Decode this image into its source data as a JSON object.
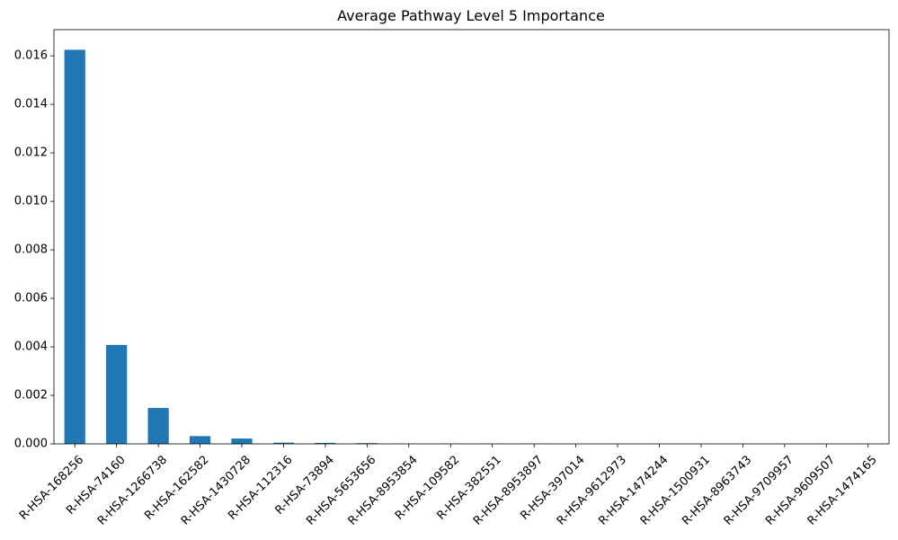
{
  "chart_data": {
    "type": "bar",
    "title": "Average Pathway Level 5 Importance",
    "xlabel": "",
    "ylabel": "",
    "ylim": [
      0,
      0.01708
    ],
    "yticks": [
      0.0,
      0.002,
      0.004,
      0.006,
      0.008,
      0.01,
      0.012,
      0.014,
      0.016
    ],
    "ytick_labels": [
      "0.000",
      "0.002",
      "0.004",
      "0.006",
      "0.008",
      "0.010",
      "0.012",
      "0.014",
      "0.016"
    ],
    "grid": false,
    "bar_color": "#1f77b4",
    "categories": [
      "R-HSA-168256",
      "R-HSA-74160",
      "R-HSA-1266738",
      "R-HSA-162582",
      "R-HSA-1430728",
      "R-HSA-112316",
      "R-HSA-73894",
      "R-HSA-5653656",
      "R-HSA-8953854",
      "R-HSA-109582",
      "R-HSA-382551",
      "R-HSA-8953897",
      "R-HSA-397014",
      "R-HSA-9612973",
      "R-HSA-1474244",
      "R-HSA-1500931",
      "R-HSA-8963743",
      "R-HSA-9709957",
      "R-HSA-9609507",
      "R-HSA-1474165"
    ],
    "values": [
      0.01625,
      0.00408,
      0.00148,
      0.00032,
      0.00022,
      5e-05,
      4e-05,
      3e-05,
      5e-06,
      4e-06,
      3e-06,
      3e-06,
      2e-06,
      2e-06,
      2e-06,
      1e-06,
      1e-06,
      1e-06,
      1e-06,
      1e-06
    ]
  }
}
